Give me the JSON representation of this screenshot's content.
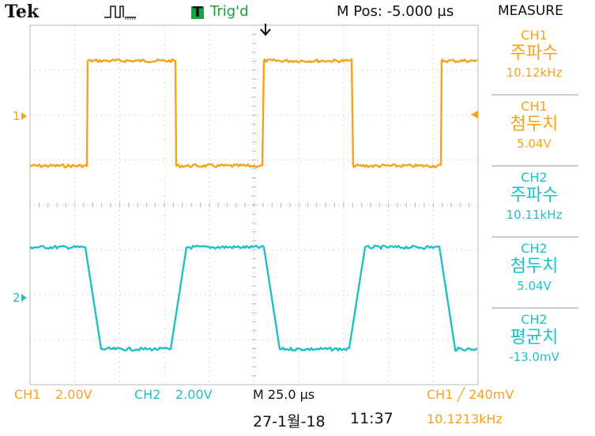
{
  "header": {
    "brand": "Tek",
    "trigger_badge": "T",
    "trigger_status": "Trig'd",
    "horizontal_position": "M Pos: -5.000 µs",
    "measure_title": "MEASURE"
  },
  "channel_markers": {
    "ch1": "1",
    "ch2": "2"
  },
  "measurements": [
    {
      "channel": "CH1",
      "name": "주파수",
      "value": "10.12kHz",
      "color": "#f7a21b"
    },
    {
      "channel": "CH1",
      "name": "첨두치",
      "value": "5.04V",
      "color": "#f7a21b"
    },
    {
      "channel": "CH2",
      "name": "주파수",
      "value": "10.11kHz",
      "color": "#1fc0c6"
    },
    {
      "channel": "CH2",
      "name": "첨두치",
      "value": "5.04V",
      "color": "#1fc0c6"
    },
    {
      "channel": "CH2",
      "name": "평균치",
      "value": "-13.0mV",
      "color": "#1fc0c6"
    }
  ],
  "status": {
    "ch1_label": "CH1",
    "ch1_scale": "2.00V",
    "ch2_label": "CH2",
    "ch2_scale": "2.00V",
    "timebase": "M 25.0 µs",
    "trigger_info": "CH1 ╱ 240mV",
    "date": "27-1월-18",
    "time": "11:37",
    "trigger_freq": "10.1213kHz"
  },
  "colors": {
    "ch1": "#f7a21b",
    "ch2": "#1fc0c6",
    "trigger": "#19a23d",
    "grid": "#b8b8b8"
  }
}
